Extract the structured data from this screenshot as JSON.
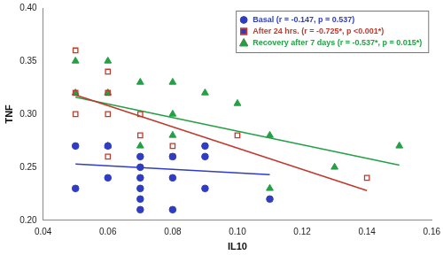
{
  "chart_data": {
    "type": "scatter",
    "x_label": "IL10",
    "y_label": "TNF",
    "xlim": [
      0.04,
      0.16
    ],
    "xticks": [
      0.04,
      0.06,
      0.08,
      {
        "value": 0.1,
        "label": "0.10"
      },
      0.12,
      0.14,
      0.16
    ],
    "ylim": [
      0.2,
      0.4
    ],
    "yticks": [
      {
        "value": 0.2,
        "label": "0.20"
      },
      0.25,
      {
        "value": 0.3,
        "label": "0.30"
      },
      0.35,
      {
        "value": 0.4,
        "label": "0.40"
      }
    ],
    "grid": false,
    "legend": "upper right",
    "series": [
      {
        "name": "Basal (r = -0.147, p = 0.537)",
        "color": "#2e3dc4",
        "marker": "circle",
        "x": [
          0.05,
          0.05,
          0.06,
          0.06,
          0.07,
          0.07,
          0.07,
          0.07,
          0.07,
          0.07,
          0.08,
          0.08,
          0.08,
          0.09,
          0.09,
          0.09,
          0.11
        ],
        "y": [
          0.27,
          0.23,
          0.27,
          0.24,
          0.26,
          0.25,
          0.24,
          0.23,
          0.22,
          0.21,
          0.26,
          0.24,
          0.21,
          0.27,
          0.26,
          0.23,
          0.22
        ],
        "trend": {
          "x": [
            0.05,
            0.11
          ],
          "y": [
            0.253,
            0.243
          ]
        }
      },
      {
        "name": "After 24 hrs. (r = -0.725*, p <0.001*)",
        "color": "#c0392b",
        "marker": "open-square",
        "x": [
          0.05,
          0.05,
          0.05,
          0.06,
          0.06,
          0.06,
          0.06,
          0.07,
          0.07,
          0.08,
          0.08,
          0.1,
          0.14
        ],
        "y": [
          0.36,
          0.32,
          0.3,
          0.34,
          0.32,
          0.3,
          0.26,
          0.3,
          0.28,
          0.27,
          0.26,
          0.28,
          0.24
        ],
        "trend": {
          "x": [
            0.05,
            0.14
          ],
          "y": [
            0.318,
            0.228
          ]
        }
      },
      {
        "name": "Recovery after 7 days (r = -0.537*, p = 0.015*)",
        "color": "#23a045",
        "marker": "triangle",
        "x": [
          0.05,
          0.05,
          0.06,
          0.06,
          0.06,
          0.07,
          0.07,
          0.08,
          0.08,
          0.08,
          0.09,
          0.1,
          0.11,
          0.11,
          0.13,
          0.15
        ],
        "y": [
          0.35,
          0.32,
          0.35,
          0.32,
          0.27,
          0.33,
          0.27,
          0.33,
          0.3,
          0.28,
          0.32,
          0.31,
          0.28,
          0.23,
          0.25,
          0.27
        ],
        "trend": {
          "x": [
            0.05,
            0.15
          ],
          "y": [
            0.316,
            0.252
          ]
        }
      }
    ]
  }
}
